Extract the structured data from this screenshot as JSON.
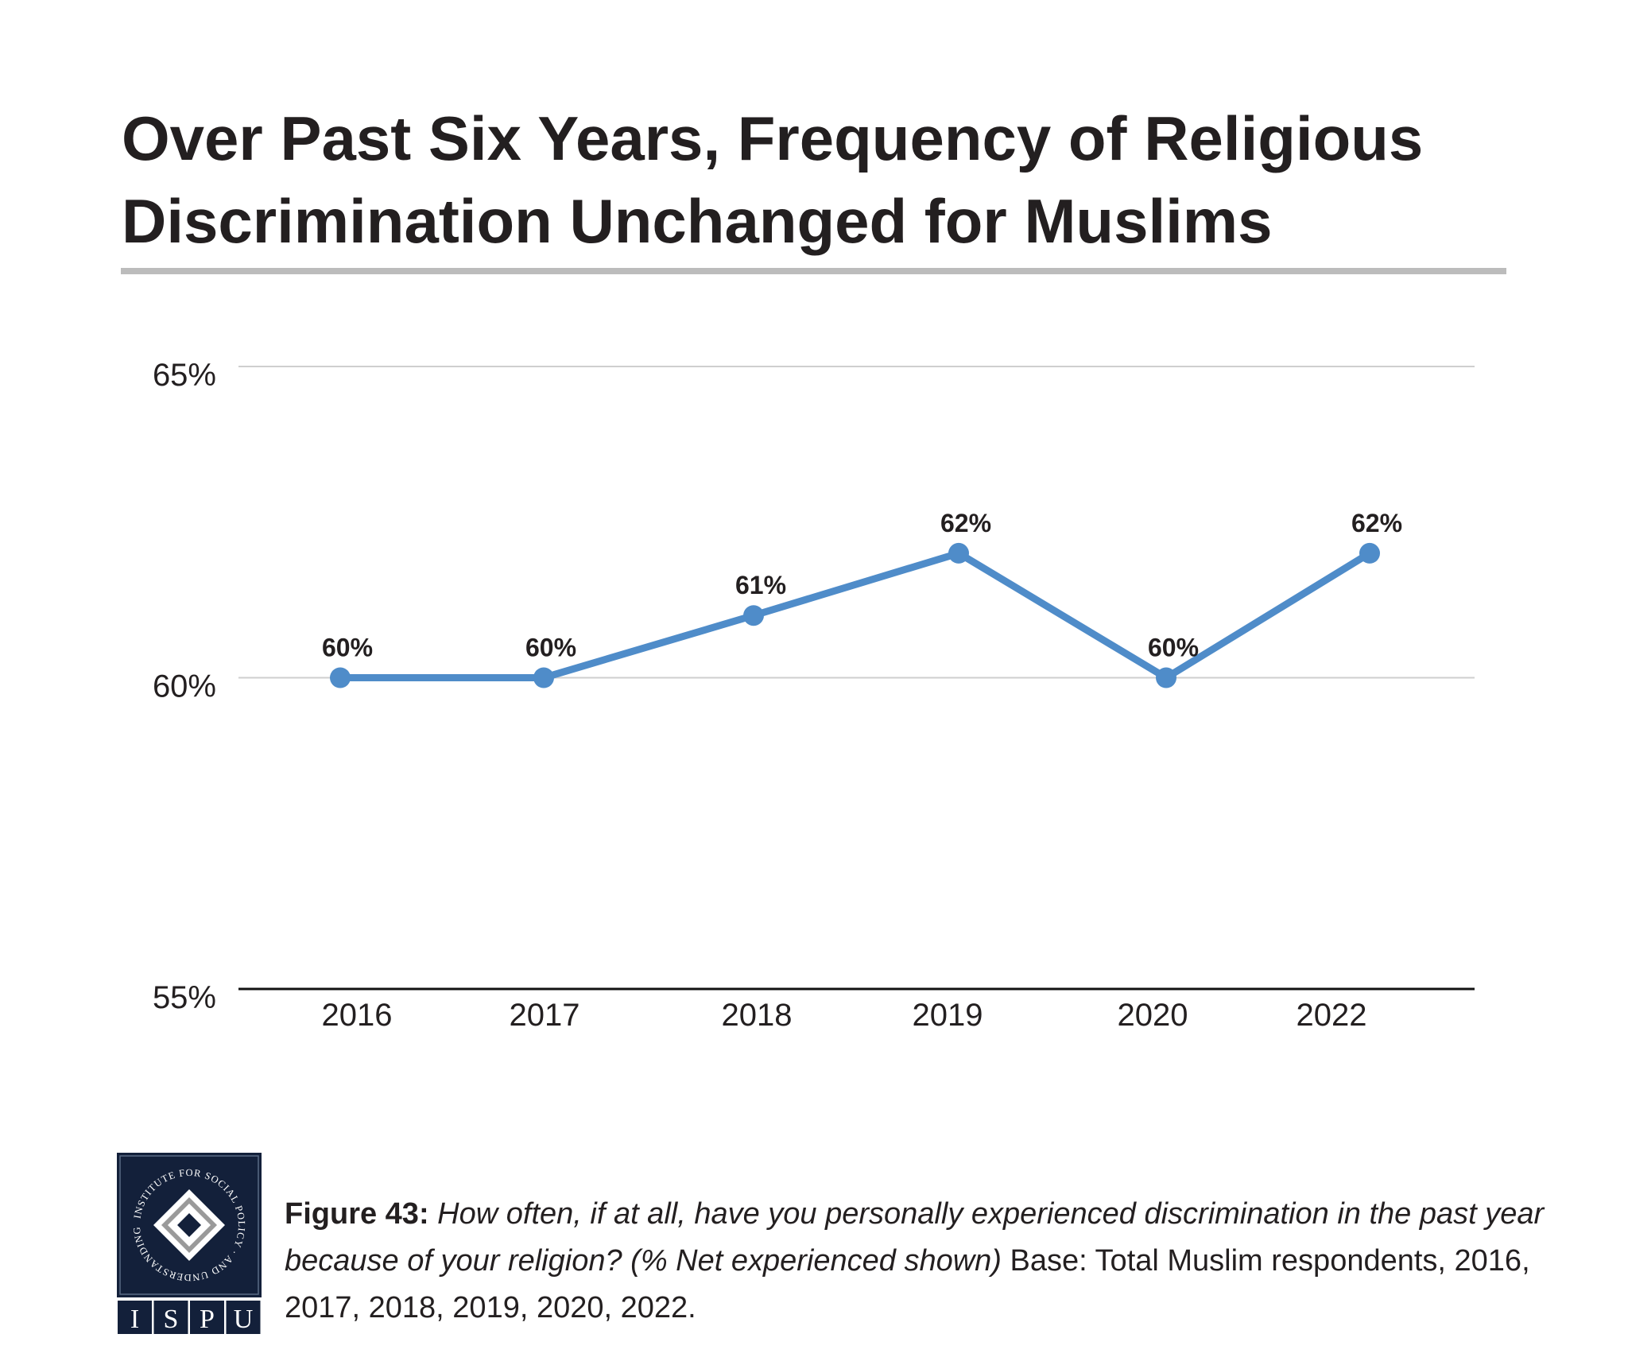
{
  "chart_data": {
    "type": "line",
    "title": "Over Past Six Years, Frequency of Religious Discrimination Unchanged for Muslims",
    "categories": [
      "2016",
      "2017",
      "2018",
      "2019",
      "2020",
      "2022"
    ],
    "values": [
      60,
      60,
      61,
      62,
      60,
      62
    ],
    "data_labels": [
      "60%",
      "60%",
      "61%",
      "62%",
      "60%",
      "62%"
    ],
    "ylim": [
      55,
      65
    ],
    "yticks": [
      55,
      60,
      65
    ],
    "ytick_labels": [
      "55%",
      "60%",
      "65%"
    ],
    "grid": true,
    "xlabel": "",
    "ylabel": "",
    "line_color": "#4f8cc9"
  },
  "caption": {
    "figure_label": "Figure 43:",
    "question": "How often, if at all, have you personally experienced discrimination in the past year because of your religion? (% Net experienced shown)",
    "base": "Base: Total Muslim respondents, 2016, 2017, 2018, 2019, 2020, 2022."
  },
  "logo": {
    "ring_text": "INSTITUTE FOR SOCIAL POLICY AND UNDERSTANDING",
    "letters": [
      "I",
      "S",
      "P",
      "U"
    ],
    "background": "#13203a"
  }
}
